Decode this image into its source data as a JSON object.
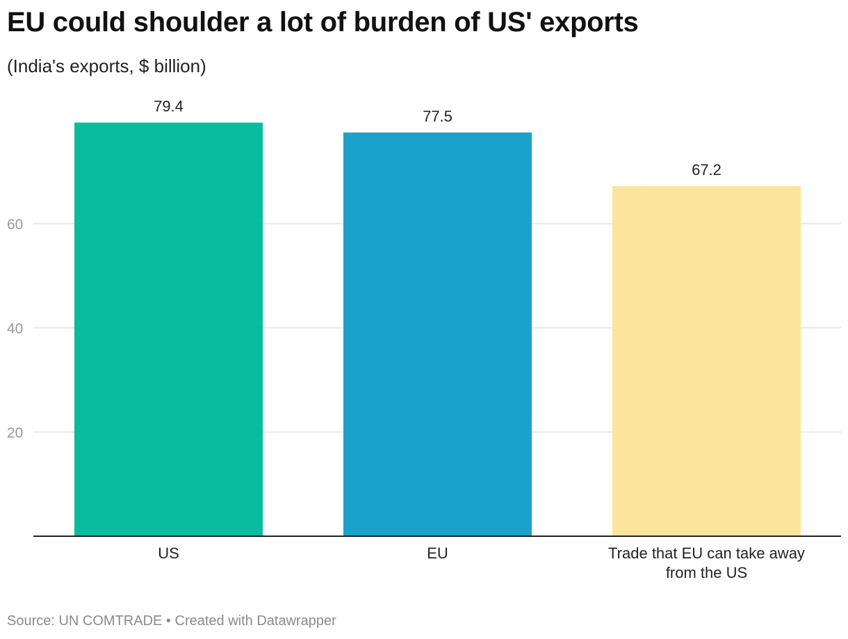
{
  "title": "EU could shoulder a lot of burden of US' exports",
  "subtitle": "(India's exports, $ billion)",
  "footer": {
    "source": "Source: UN COMTRADE",
    "separator": " • ",
    "credit": "Created with Datawrapper"
  },
  "chart_data": {
    "type": "bar",
    "title": "EU could shoulder a lot of burden of US' exports",
    "subtitle": "(India's exports, $ billion)",
    "categories": [
      "US",
      "EU",
      "Trade that EU can take away from the US"
    ],
    "category_lines": [
      [
        "US"
      ],
      [
        "EU"
      ],
      [
        "Trade that EU can take away",
        "from the US"
      ]
    ],
    "values": [
      79.4,
      77.5,
      67.2
    ],
    "value_labels": [
      "79.4",
      "77.5",
      "67.2"
    ],
    "colors": [
      "#0abc9f",
      "#1aa2cc",
      "#fde49c"
    ],
    "ylim": [
      0,
      80
    ],
    "yticks": [
      20,
      40,
      60
    ],
    "grid": true,
    "legend": "none"
  }
}
